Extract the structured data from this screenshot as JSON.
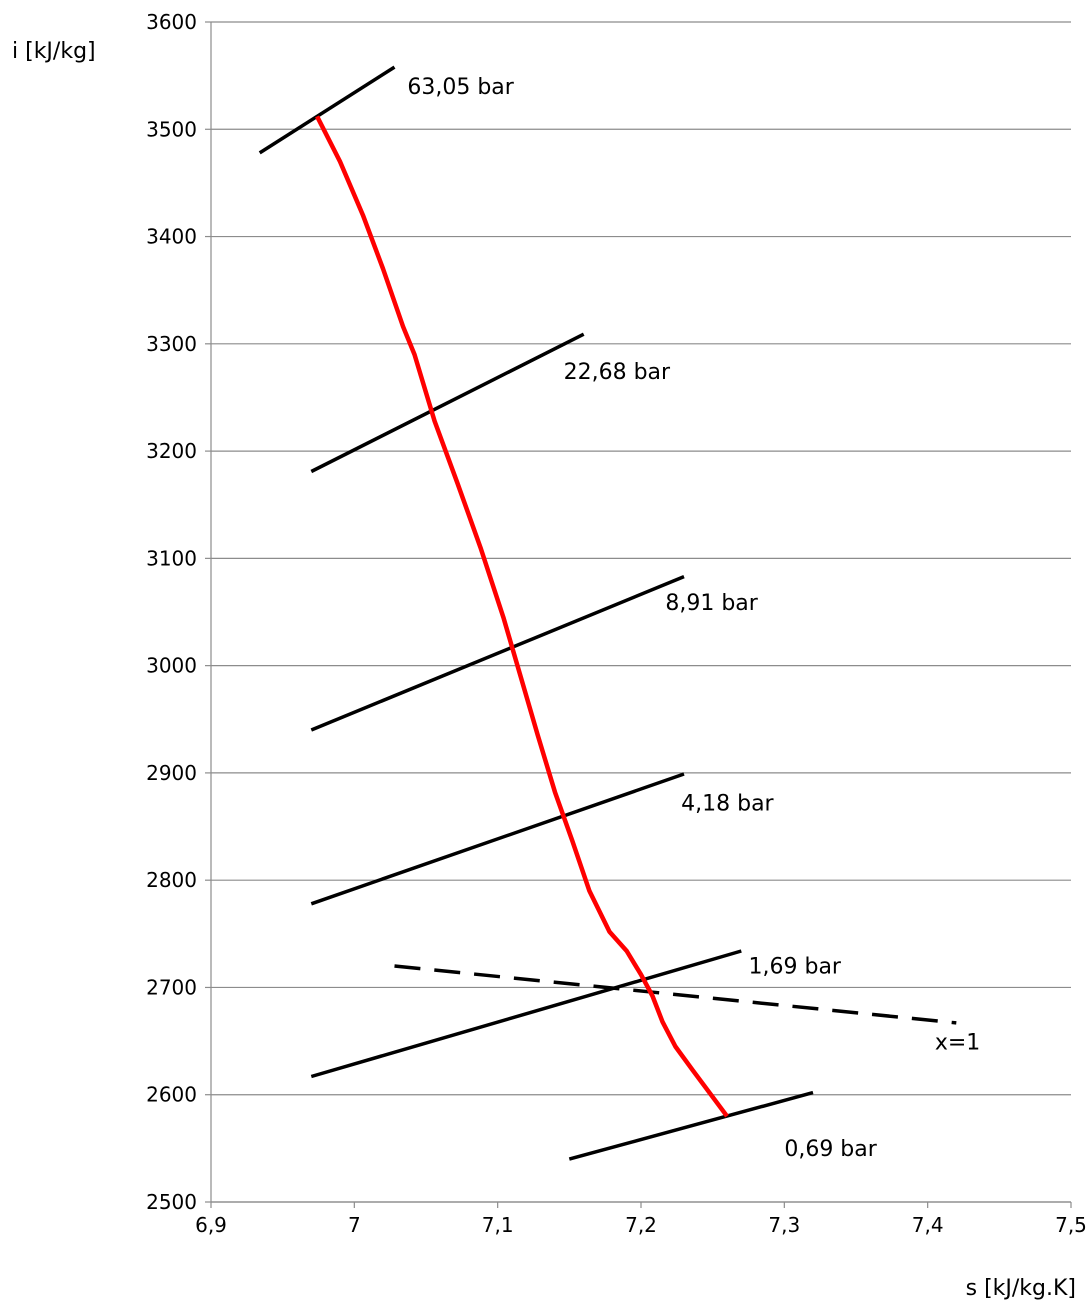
{
  "chart_data": {
    "type": "line",
    "title": "",
    "xlabel": "s [kJ/kg.K]",
    "ylabel": "i [kJ/kg]",
    "xlim": [
      6.9,
      7.5
    ],
    "ylim": [
      2500,
      3600
    ],
    "x_ticks": [
      "6,9",
      "7",
      "7,1",
      "7,2",
      "7,3",
      "7,4",
      "7,5"
    ],
    "y_ticks": [
      "2500",
      "2600",
      "2700",
      "2800",
      "2900",
      "3000",
      "3100",
      "3200",
      "3300",
      "3400",
      "3500",
      "3600"
    ],
    "grid": "horizontal",
    "legend": "none",
    "colors": {
      "isobars": "#000000",
      "expansion": "#ff0000",
      "grid": "#8c8c8c"
    },
    "series": [
      {
        "name": "63,05 bar",
        "style": "solid",
        "color": "#000000",
        "points": [
          [
            6.934,
            3478
          ],
          [
            7.028,
            3558
          ]
        ]
      },
      {
        "name": "22,68 bar",
        "style": "solid",
        "color": "#000000",
        "points": [
          [
            6.97,
            3181
          ],
          [
            7.16,
            3309
          ]
        ]
      },
      {
        "name": "8,91 bar",
        "style": "solid",
        "color": "#000000",
        "points": [
          [
            6.97,
            2940
          ],
          [
            7.23,
            3083
          ]
        ]
      },
      {
        "name": "4,18 bar",
        "style": "solid",
        "color": "#000000",
        "points": [
          [
            6.97,
            2778
          ],
          [
            7.23,
            2899
          ]
        ]
      },
      {
        "name": "1,69 bar",
        "style": "solid",
        "color": "#000000",
        "points": [
          [
            6.97,
            2617
          ],
          [
            7.27,
            2734
          ]
        ]
      },
      {
        "name": "0,69 bar",
        "style": "solid",
        "color": "#000000",
        "points": [
          [
            7.15,
            2540
          ],
          [
            7.32,
            2602
          ]
        ]
      },
      {
        "name": "x=1",
        "style": "dashed",
        "color": "#000000",
        "points": [
          [
            7.028,
            2720
          ],
          [
            7.42,
            2667
          ]
        ]
      },
      {
        "style": "solid",
        "color": "#ff0000",
        "points": [
          [
            6.974,
            3512
          ],
          [
            6.99,
            3470
          ],
          [
            7.006,
            3420
          ],
          [
            7.02,
            3370
          ],
          [
            7.034,
            3316
          ],
          [
            7.042,
            3290
          ],
          [
            7.056,
            3228
          ],
          [
            7.072,
            3170
          ],
          [
            7.088,
            3110
          ],
          [
            7.104,
            3045
          ],
          [
            7.116,
            2990
          ],
          [
            7.128,
            2935
          ],
          [
            7.14,
            2882
          ],
          [
            7.152,
            2837
          ],
          [
            7.164,
            2790
          ],
          [
            7.178,
            2752
          ],
          [
            7.19,
            2734
          ],
          [
            7.2,
            2712
          ],
          [
            7.208,
            2692
          ],
          [
            7.215,
            2668
          ],
          [
            7.224,
            2645
          ],
          [
            7.236,
            2623
          ],
          [
            7.26,
            2580
          ]
        ]
      }
    ],
    "annotations": [
      {
        "text": "63,05 bar",
        "x": 7.037,
        "y": 3533
      },
      {
        "text": "22,68 bar",
        "x": 7.146,
        "y": 3267
      },
      {
        "text": "8,91 bar",
        "x": 7.217,
        "y": 3052
      },
      {
        "text": "4,18 bar",
        "x": 7.228,
        "y": 2865
      },
      {
        "text": "1,69 bar",
        "x": 7.275,
        "y": 2713
      },
      {
        "text": "0,69 bar",
        "x": 7.3,
        "y": 2543
      },
      {
        "text": "x=1",
        "x": 7.405,
        "y": 2642
      }
    ]
  }
}
